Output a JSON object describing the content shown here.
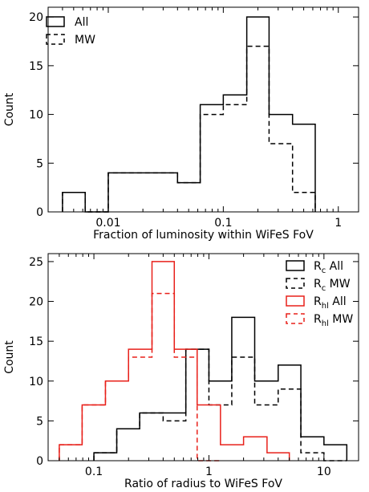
{
  "chart_data": [
    {
      "type": "histogram",
      "xlabel": "Fraction of luminosity within WiFeS FoV",
      "ylabel": "Count",
      "xscale": "log",
      "xlim": [
        0.003,
        1.5
      ],
      "ylim": [
        0,
        21
      ],
      "xticks": [
        0.01,
        0.1,
        1
      ],
      "xtick_labels": [
        "0.01",
        "0.1",
        "1"
      ],
      "yticks": [
        0,
        5,
        10,
        15,
        20
      ],
      "legend": "top-left",
      "series": [
        {
          "name": "All",
          "style": "solid",
          "color": "#000000",
          "bins": [
            [
              0.004,
              0.0063,
              2
            ],
            [
              0.0063,
              0.01,
              0
            ],
            [
              0.01,
              0.04,
              4
            ],
            [
              0.04,
              0.063,
              3
            ],
            [
              0.063,
              0.1,
              11
            ],
            [
              0.1,
              0.16,
              12
            ],
            [
              0.16,
              0.25,
              20
            ],
            [
              0.25,
              0.4,
              10
            ],
            [
              0.4,
              0.63,
              9
            ]
          ]
        },
        {
          "name": "MW",
          "style": "dashed",
          "color": "#000000",
          "bins": [
            [
              0.004,
              0.0063,
              2
            ],
            [
              0.0063,
              0.01,
              0
            ],
            [
              0.01,
              0.04,
              4
            ],
            [
              0.04,
              0.063,
              3
            ],
            [
              0.063,
              0.1,
              10
            ],
            [
              0.1,
              0.16,
              11
            ],
            [
              0.16,
              0.25,
              17
            ],
            [
              0.25,
              0.4,
              7
            ],
            [
              0.4,
              0.63,
              2
            ]
          ]
        }
      ]
    },
    {
      "type": "histogram",
      "xlabel": "Ratio of radius to WiFeS FoV",
      "ylabel": "Count",
      "xscale": "log",
      "xlim": [
        0.04,
        20
      ],
      "ylim": [
        0,
        26
      ],
      "xticks": [
        0.1,
        1,
        10
      ],
      "xtick_labels": [
        "0.1",
        "1",
        "10"
      ],
      "yticks": [
        0,
        5,
        10,
        15,
        20,
        25
      ],
      "legend": "top-right",
      "series": [
        {
          "name": "Rc All",
          "label_main": "R",
          "label_sub": "c",
          "label_rest": " All",
          "style": "solid",
          "color": "#000000",
          "bins": [
            [
              0.1,
              0.158,
              1
            ],
            [
              0.158,
              0.25,
              4
            ],
            [
              0.25,
              0.4,
              6
            ],
            [
              0.4,
              0.63,
              6
            ],
            [
              0.63,
              1.0,
              14
            ],
            [
              1.0,
              1.58,
              10
            ],
            [
              1.58,
              2.5,
              18
            ],
            [
              2.5,
              4.0,
              10
            ],
            [
              4.0,
              6.3,
              12
            ],
            [
              6.3,
              10,
              3
            ],
            [
              10,
              15.8,
              2
            ]
          ]
        },
        {
          "name": "Rc MW",
          "label_main": "R",
          "label_sub": "c",
          "label_rest": " MW",
          "style": "dashed",
          "color": "#000000",
          "bins": [
            [
              0.1,
              0.158,
              1
            ],
            [
              0.158,
              0.25,
              4
            ],
            [
              0.25,
              0.4,
              6
            ],
            [
              0.4,
              0.63,
              5
            ],
            [
              0.63,
              1.0,
              14
            ],
            [
              1.0,
              1.58,
              7
            ],
            [
              1.58,
              2.5,
              13
            ],
            [
              2.5,
              4.0,
              7
            ],
            [
              4.0,
              6.3,
              9
            ],
            [
              6.3,
              10,
              1
            ],
            [
              10,
              15.8,
              0
            ]
          ]
        },
        {
          "name": "Rhl All",
          "label_main": "R",
          "label_sub": "hl",
          "label_rest": " All",
          "style": "solid",
          "color": "#e8201a",
          "bins": [
            [
              0.05,
              0.079,
              2
            ],
            [
              0.079,
              0.126,
              7
            ],
            [
              0.126,
              0.2,
              10
            ],
            [
              0.2,
              0.32,
              14
            ],
            [
              0.32,
              0.5,
              25
            ],
            [
              0.5,
              0.79,
              14
            ],
            [
              0.79,
              1.26,
              7
            ],
            [
              1.26,
              2.0,
              2
            ],
            [
              2.0,
              3.2,
              3
            ],
            [
              3.2,
              5.0,
              1
            ]
          ]
        },
        {
          "name": "Rhl MW",
          "label_main": "R",
          "label_sub": "hl",
          "label_rest": " MW",
          "style": "dashed",
          "color": "#e8201a",
          "bins": [
            [
              0.05,
              0.079,
              2
            ],
            [
              0.079,
              0.126,
              7
            ],
            [
              0.126,
              0.2,
              10
            ],
            [
              0.2,
              0.32,
              13
            ],
            [
              0.32,
              0.5,
              21
            ],
            [
              0.5,
              0.79,
              13
            ],
            [
              0.79,
              1.26,
              0
            ]
          ]
        }
      ]
    }
  ]
}
